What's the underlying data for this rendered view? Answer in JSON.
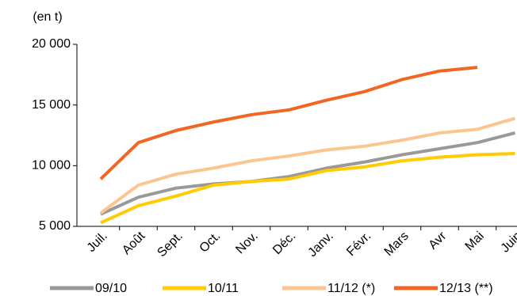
{
  "chart_data": {
    "type": "line",
    "y_label": "(en t)",
    "categories": [
      "Juil.",
      "Août",
      "Sept.",
      "Oct.",
      "Nov.",
      "Déc.",
      "Janv.",
      "Févr.",
      "Mars",
      "Avr",
      "Mai",
      "Juin"
    ],
    "series": [
      {
        "name": "09/10",
        "color": "#999999",
        "values": [
          6000,
          7400,
          8150,
          8500,
          8700,
          9100,
          9800,
          10300,
          10900,
          11400,
          11900,
          12700
        ]
      },
      {
        "name": "10/11",
        "color": "#ffcc00",
        "values": [
          5300,
          6700,
          7500,
          8400,
          8700,
          8900,
          9600,
          9900,
          10400,
          10700,
          10900,
          11000
        ]
      },
      {
        "name": "11/12 (*)",
        "color": "#fcc490",
        "values": [
          6100,
          8400,
          9300,
          9800,
          10400,
          10800,
          11300,
          11600,
          12100,
          12700,
          13000,
          13900
        ]
      },
      {
        "name": "12/13 (**)",
        "color": "#f26522",
        "values": [
          8900,
          11900,
          12900,
          13600,
          14200,
          14600,
          15400,
          16100,
          17100,
          17800,
          18100,
          null
        ]
      }
    ],
    "ylim": [
      5000,
      20000
    ],
    "yticks": [
      {
        "value": 5000,
        "label": "5 000"
      },
      {
        "value": 10000,
        "label": "10 000"
      },
      {
        "value": 15000,
        "label": "15 000"
      },
      {
        "value": 20000,
        "label": "20 000"
      }
    ],
    "legend": "bottom"
  }
}
